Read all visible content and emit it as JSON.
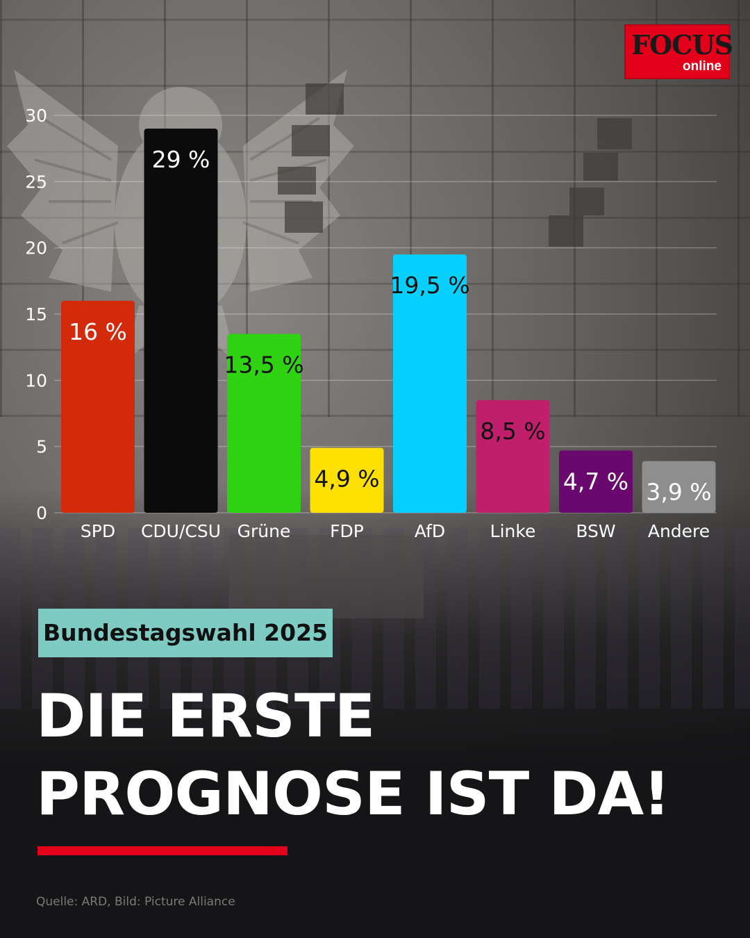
{
  "logo": {
    "wordmark": "FOCUS",
    "subline": "online"
  },
  "chart_data": {
    "type": "bar",
    "categories": [
      "SPD",
      "CDU/CSU",
      "Grüne",
      "FDP",
      "AfD",
      "Linke",
      "BSW",
      "Andere"
    ],
    "values": [
      16,
      29,
      13.5,
      4.9,
      19.5,
      8.5,
      4.7,
      3.9
    ],
    "data_labels": [
      "16 %",
      "29 %",
      "13,5 %",
      "4,9 %",
      "19,5 %",
      "8,5 %",
      "4,7 %",
      "3,9 %"
    ],
    "bar_colors": [
      "#d42a0c",
      "#0b0b0b",
      "#2fd312",
      "#ffe000",
      "#07d0ff",
      "#bf1f6b",
      "#6b0870",
      "#8e8e8e"
    ],
    "label_colors": [
      "#ffffff",
      "#ffffff",
      "#111111",
      "#111111",
      "#111111",
      "#111111",
      "#ffffff",
      "#ffffff"
    ],
    "yticks": [
      0,
      5,
      10,
      15,
      20,
      25,
      30
    ],
    "ylim": [
      0,
      30
    ],
    "grid": true,
    "title": "",
    "xlabel": "",
    "ylabel": ""
  },
  "tag": "Bundestagswahl 2025",
  "headline": {
    "line1": "DIE ERSTE",
    "line2": "PROGNOSE IST DA!"
  },
  "accent_color": "#e2001a",
  "source": "Quelle: ARD, Bild: Picture Alliance"
}
